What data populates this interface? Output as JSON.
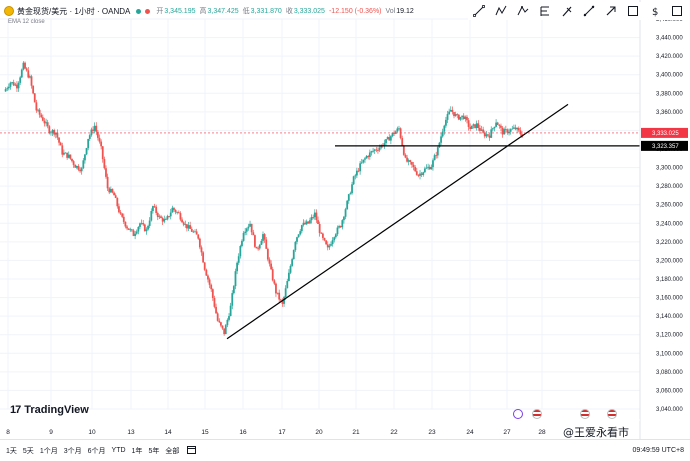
{
  "header": {
    "symbol": "黄金现货/美元 · 1小时 · OANDA",
    "open_label": "开",
    "open": "3,345.195",
    "high_label": "高",
    "high": "3,347.425",
    "low_label": "低",
    "low": "3,331.870",
    "close_label": "收",
    "close": "3,333.025",
    "change": "-12.150 (-0.36%)",
    "volume_label": "Vol",
    "volume": "19.12"
  },
  "indicator": "EMA 12 close",
  "brand": "TradingView",
  "timeframes": [
    "1天",
    "5天",
    "1个月",
    "3个月",
    "6个月",
    "YTD",
    "1年",
    "5年",
    "全部"
  ],
  "clock": "09:49:59 UTC+8",
  "watermark": "@王爱永看市",
  "drawing_tools": [
    "trendline-icon",
    "zigzag-icon",
    "fib-icon",
    "text-icon",
    "brush-icon",
    "measure-icon",
    "rectangle-icon",
    "arrow-icon",
    "dollar-icon",
    "square-icon"
  ],
  "price_axis": {
    "ticks": [
      "3,460.000",
      "3,440.000",
      "3,420.000",
      "3,400.000",
      "3,380.000",
      "3,360.000",
      "3,340.000",
      "3,320.000",
      "3,300.000",
      "3,280.000",
      "3,260.000",
      "3,240.000",
      "3,220.000",
      "3,200.000",
      "3,180.000",
      "3,160.000",
      "3,140.000",
      "3,120.000",
      "3,100.000",
      "3,080.000",
      "3,060.000",
      "3,040.000"
    ],
    "current_price": "3,333.025",
    "line_price": "3,323.357"
  },
  "time_axis": [
    "8",
    "9",
    "10",
    "13",
    "14",
    "15",
    "16",
    "17",
    "20",
    "21",
    "22",
    "23",
    "24",
    "27",
    "28"
  ],
  "colors": {
    "up": "#26a69a",
    "down": "#ef5350",
    "grid": "#f0f3fa",
    "drawing": "#000000",
    "current_bg": "#f23645"
  },
  "chart_data": {
    "type": "candlestick",
    "y_range": [
      3040,
      3460
    ],
    "horizontal_line": 3323.357,
    "trendline": {
      "from": [
        "15",
        3120
      ],
      "to": [
        "28",
        3368
      ]
    },
    "path": [
      3382,
      3392,
      3388,
      3410,
      3396,
      3362,
      3352,
      3340,
      3338,
      3316,
      3312,
      3302,
      3298,
      3332,
      3345,
      3320,
      3278,
      3270,
      3248,
      3236,
      3228,
      3240,
      3232,
      3258,
      3246,
      3242,
      3256,
      3250,
      3238,
      3232,
      3225,
      3192,
      3168,
      3135,
      3122,
      3150,
      3198,
      3232,
      3240,
      3210,
      3228,
      3195,
      3166,
      3152,
      3185,
      3222,
      3238,
      3240,
      3250,
      3226,
      3212,
      3228,
      3238,
      3262,
      3288,
      3302,
      3312,
      3318,
      3322,
      3328,
      3336,
      3342,
      3308,
      3302,
      3292,
      3298,
      3302,
      3320,
      3348,
      3362,
      3354,
      3355,
      3342,
      3346,
      3336,
      3335,
      3350,
      3338,
      3340,
      3342,
      3335
    ]
  }
}
